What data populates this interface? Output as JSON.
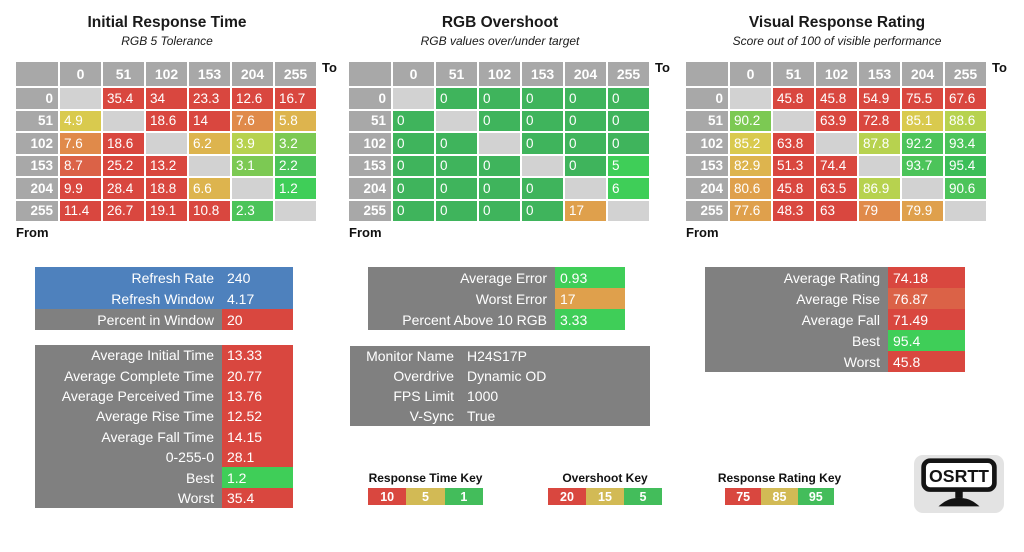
{
  "colors": {
    "headerGray": "#A8A8A8",
    "diag": "#D2D2D2",
    "gray": "#808080",
    "blue": "#4E81BD",
    "red": "#D9473F",
    "redOrange": "#DB6247",
    "orange": "#E08A4A",
    "amber": "#DFA04C",
    "yellowOrange": "#DDB44E",
    "yellow": "#D9CA4E",
    "yellowGreen": "#B7D24F",
    "lightGreen": "#7CC953",
    "green": "#4CC45A",
    "brightGreen": "#3FCE58",
    "deepGreen": "#3CBE58",
    "osGreen": "#3FB45C",
    "keyTan": "#D2BA55",
    "keyGreen": "#43BD5B"
  },
  "chart_data": [
    {
      "type": "heatmap",
      "title": "Initial Response Time",
      "subtitle": "RGB 5 Tolerance",
      "x_label": "To",
      "y_label": "From",
      "columns": [
        0,
        51,
        102,
        153,
        204,
        255
      ],
      "rows": [
        0,
        51,
        102,
        153,
        204,
        255
      ],
      "values": [
        [
          null,
          35.4,
          34,
          23.3,
          12.6,
          16.7
        ],
        [
          4.9,
          null,
          18.6,
          14,
          7.6,
          5.8
        ],
        [
          7.6,
          18.6,
          null,
          6.2,
          3.9,
          3.2
        ],
        [
          8.7,
          25.2,
          13.2,
          null,
          3.1,
          2.2
        ],
        [
          9.9,
          28.4,
          18.8,
          6.6,
          null,
          1.2
        ],
        [
          11.4,
          26.7,
          19.1,
          10.8,
          2.3,
          null
        ]
      ],
      "cell_colors": [
        [
          "diag",
          "red",
          "red",
          "red",
          "red",
          "red"
        ],
        [
          "yellow",
          "diag",
          "red",
          "red",
          "orange",
          "yellowOrange"
        ],
        [
          "orange",
          "red",
          "diag",
          "yellowOrange",
          "yellowGreen",
          "lightGreen"
        ],
        [
          "redOrange",
          "red",
          "red",
          "diag",
          "lightGreen",
          "green"
        ],
        [
          "red",
          "red",
          "red",
          "yellowOrange",
          "diag",
          "brightGreen"
        ],
        [
          "red",
          "red",
          "red",
          "red",
          "green",
          "diag"
        ]
      ]
    },
    {
      "type": "heatmap",
      "title": "RGB Overshoot",
      "subtitle": "RGB values over/under target",
      "x_label": "To",
      "y_label": "From",
      "columns": [
        0,
        51,
        102,
        153,
        204,
        255
      ],
      "rows": [
        0,
        51,
        102,
        153,
        204,
        255
      ],
      "values": [
        [
          null,
          0,
          0,
          0,
          0,
          0
        ],
        [
          0,
          null,
          0,
          0,
          0,
          0
        ],
        [
          0,
          0,
          null,
          0,
          0,
          0
        ],
        [
          0,
          0,
          0,
          null,
          0,
          5
        ],
        [
          0,
          0,
          0,
          0,
          null,
          6
        ],
        [
          0,
          0,
          0,
          0,
          17,
          null
        ]
      ],
      "cell_colors": [
        [
          "diag",
          "osGreen",
          "osGreen",
          "osGreen",
          "osGreen",
          "osGreen"
        ],
        [
          "osGreen",
          "diag",
          "osGreen",
          "osGreen",
          "osGreen",
          "osGreen"
        ],
        [
          "osGreen",
          "osGreen",
          "diag",
          "osGreen",
          "osGreen",
          "osGreen"
        ],
        [
          "osGreen",
          "osGreen",
          "osGreen",
          "diag",
          "osGreen",
          "brightGreen"
        ],
        [
          "osGreen",
          "osGreen",
          "osGreen",
          "osGreen",
          "diag",
          "brightGreen"
        ],
        [
          "osGreen",
          "osGreen",
          "osGreen",
          "osGreen",
          "amber",
          "diag"
        ]
      ]
    },
    {
      "type": "heatmap",
      "title": "Visual Response Rating",
      "subtitle": "Score out of 100 of visible performance",
      "x_label": "To",
      "y_label": "From",
      "columns": [
        0,
        51,
        102,
        153,
        204,
        255
      ],
      "rows": [
        0,
        51,
        102,
        153,
        204,
        255
      ],
      "values": [
        [
          null,
          45.8,
          45.8,
          54.9,
          75.5,
          67.6
        ],
        [
          90.2,
          null,
          63.9,
          72.8,
          85.1,
          88.6
        ],
        [
          85.2,
          63.8,
          null,
          87.8,
          92.2,
          93.4
        ],
        [
          82.9,
          51.3,
          74.4,
          null,
          93.7,
          95.4
        ],
        [
          80.6,
          45.8,
          63.5,
          86.9,
          null,
          90.6
        ],
        [
          77.6,
          48.3,
          63,
          79,
          79.9,
          null
        ]
      ],
      "cell_colors": [
        [
          "diag",
          "red",
          "red",
          "red",
          "red",
          "red"
        ],
        [
          "lightGreen",
          "diag",
          "red",
          "red",
          "yellow",
          "yellowGreen"
        ],
        [
          "yellow",
          "red",
          "diag",
          "yellowGreen",
          "green",
          "green"
        ],
        [
          "yellowOrange",
          "red",
          "red",
          "diag",
          "green",
          "deepGreen"
        ],
        [
          "amber",
          "red",
          "red",
          "yellowGreen",
          "diag",
          "green"
        ],
        [
          "amber",
          "red",
          "red",
          "orange",
          "amber",
          "diag"
        ]
      ]
    }
  ],
  "panels": [
    {
      "name": "refresh-panel",
      "rows": [
        {
          "label": "Refresh Rate",
          "value": 240,
          "label_bg": "blue",
          "value_bg": "blue"
        },
        {
          "label": "Refresh Window",
          "value": 4.17,
          "label_bg": "blue",
          "value_bg": "blue"
        },
        {
          "label": "Percent in Window",
          "value": 20,
          "label_bg": "gray",
          "value_bg": "red"
        }
      ]
    },
    {
      "name": "timing-stats-panel",
      "rows": [
        {
          "label": "Average Initial Time",
          "value": 13.33,
          "label_bg": "gray",
          "value_bg": "red"
        },
        {
          "label": "Average Complete Time",
          "value": 20.77,
          "label_bg": "gray",
          "value_bg": "red"
        },
        {
          "label": "Average Perceived Time",
          "value": 13.76,
          "label_bg": "gray",
          "value_bg": "red"
        },
        {
          "label": "Average Rise Time",
          "value": 12.52,
          "label_bg": "gray",
          "value_bg": "red"
        },
        {
          "label": "Average Fall Time",
          "value": 14.15,
          "label_bg": "gray",
          "value_bg": "red"
        },
        {
          "label": "0-255-0",
          "value": 28.1,
          "label_bg": "gray",
          "value_bg": "red"
        },
        {
          "label": "Best",
          "value": 1.2,
          "label_bg": "gray",
          "value_bg": "brightGreen"
        },
        {
          "label": "Worst",
          "value": 35.4,
          "label_bg": "gray",
          "value_bg": "red"
        }
      ]
    },
    {
      "name": "error-stats-panel",
      "rows": [
        {
          "label": "Average Error",
          "value": 0.93,
          "label_bg": "gray",
          "value_bg": "brightGreen"
        },
        {
          "label": "Worst Error",
          "value": 17,
          "label_bg": "gray",
          "value_bg": "amber"
        },
        {
          "label": "Percent Above 10 RGB",
          "value": 3.33,
          "label_bg": "gray",
          "value_bg": "brightGreen"
        }
      ]
    },
    {
      "name": "monitor-info-panel",
      "rows": [
        {
          "label": "Monitor Name",
          "value": "H24S17P",
          "label_bg": "gray",
          "value_bg": "gray"
        },
        {
          "label": "Overdrive",
          "value": "Dynamic OD",
          "label_bg": "gray",
          "value_bg": "gray"
        },
        {
          "label": "FPS Limit",
          "value": 1000,
          "label_bg": "gray",
          "value_bg": "gray"
        },
        {
          "label": "V-Sync",
          "value": "True",
          "label_bg": "gray",
          "value_bg": "gray"
        }
      ]
    },
    {
      "name": "rating-stats-panel",
      "rows": [
        {
          "label": "Average Rating",
          "value": 74.18,
          "label_bg": "gray",
          "value_bg": "red"
        },
        {
          "label": "Average Rise",
          "value": 76.87,
          "label_bg": "gray",
          "value_bg": "redOrange"
        },
        {
          "label": "Average Fall",
          "value": 71.49,
          "label_bg": "gray",
          "value_bg": "red"
        },
        {
          "label": "Best",
          "value": 95.4,
          "label_bg": "gray",
          "value_bg": "brightGreen"
        },
        {
          "label": "Worst",
          "value": 45.8,
          "label_bg": "gray",
          "value_bg": "red"
        }
      ]
    }
  ],
  "keys": [
    {
      "title": "Response Time Key",
      "segments": [
        {
          "label": 10,
          "color": "red"
        },
        {
          "label": 5,
          "color": "keyTan"
        },
        {
          "label": 1,
          "color": "keyGreen"
        }
      ]
    },
    {
      "title": "Overshoot Key",
      "segments": [
        {
          "label": 20,
          "color": "red"
        },
        {
          "label": 15,
          "color": "keyTan"
        },
        {
          "label": 5,
          "color": "keyGreen"
        }
      ]
    },
    {
      "title": "Response Rating Key",
      "segments": [
        {
          "label": 75,
          "color": "red"
        },
        {
          "label": 85,
          "color": "keyTan"
        },
        {
          "label": 95,
          "color": "keyGreen"
        }
      ]
    }
  ],
  "logo": {
    "text": "OSRTT"
  }
}
